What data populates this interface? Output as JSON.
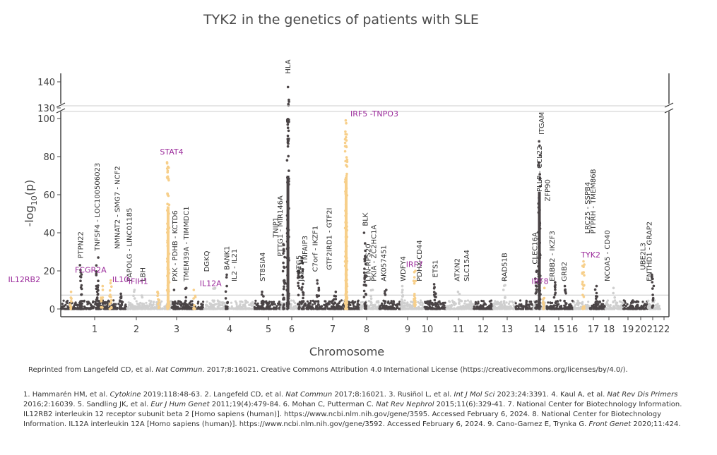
{
  "chart_data": {
    "type": "scatter",
    "title": "TYK2 in the genetics of patients with SLE",
    "xlabel": "Chromosome",
    "ylabel_parts": [
      "-log",
      "10",
      "(p)"
    ],
    "y_ticks_lower": [
      0,
      20,
      40,
      60,
      80,
      100
    ],
    "y_ticks_upper": [
      130,
      140
    ],
    "y_break": [
      100,
      130
    ],
    "chromosomes": [
      "1",
      "2",
      "3",
      "4",
      "5",
      "6",
      "7",
      "8",
      "9",
      "10",
      "11",
      "12",
      "13",
      "14",
      "15",
      "16",
      "17",
      "18",
      "19",
      "20",
      "21",
      "22"
    ],
    "colors": {
      "dark": "#4a4446",
      "light": "#cfcfcf",
      "highlight": "#f7cf8a",
      "label": "#9b2a9b",
      "threshold": "#cccccc"
    },
    "significance_threshold": 7.3,
    "peaks": [
      {
        "chr": "1",
        "pos": 0.15,
        "max": 9,
        "hl": true
      },
      {
        "chr": "1",
        "pos": 0.3,
        "max": 23,
        "hl": false
      },
      {
        "chr": "1",
        "pos": 0.55,
        "max": 27,
        "hl": false
      },
      {
        "chr": "1",
        "pos": 0.62,
        "max": 12,
        "hl": true
      },
      {
        "chr": "1",
        "pos": 0.75,
        "max": 15,
        "hl": true
      },
      {
        "chr": "1",
        "pos": 0.9,
        "max": 8,
        "hl": false
      },
      {
        "chr": "2",
        "pos": 0.15,
        "max": 10,
        "hl": false
      },
      {
        "chr": "2",
        "pos": 0.35,
        "max": 7,
        "hl": false
      },
      {
        "chr": "2",
        "pos": 0.7,
        "max": 9,
        "hl": true
      },
      {
        "chr": "2",
        "pos": 0.92,
        "max": 77,
        "hl": true
      },
      {
        "chr": "3",
        "pos": 0.1,
        "max": 10,
        "hl": false
      },
      {
        "chr": "3",
        "pos": 0.45,
        "max": 11,
        "hl": false
      },
      {
        "chr": "3",
        "pos": 0.7,
        "max": 10,
        "hl": true
      },
      {
        "chr": "4",
        "pos": 0.2,
        "max": 11,
        "hl": false
      },
      {
        "chr": "4",
        "pos": 0.45,
        "max": 18,
        "hl": false
      },
      {
        "chr": "5",
        "pos": 0.3,
        "max": 9,
        "hl": false
      },
      {
        "chr": "6",
        "pos": 0.12,
        "max": 34,
        "hl": false
      },
      {
        "chr": "6",
        "pos": 0.3,
        "max": 138,
        "hl": false
      },
      {
        "chr": "6",
        "pos": 0.78,
        "max": 20,
        "hl": false
      },
      {
        "chr": "6",
        "pos": 0.95,
        "max": 27,
        "hl": false
      },
      {
        "chr": "7",
        "pos": 0.25,
        "max": 15,
        "hl": false
      },
      {
        "chr": "7",
        "pos": 0.55,
        "max": 9,
        "hl": false
      },
      {
        "chr": "7",
        "pos": 0.75,
        "max": 99,
        "hl": true
      },
      {
        "chr": "8",
        "pos": 0.25,
        "max": 40,
        "hl": false
      },
      {
        "chr": "8",
        "pos": 0.6,
        "max": 10,
        "hl": false
      },
      {
        "chr": "9",
        "pos": 0.3,
        "max": 10,
        "hl": false
      },
      {
        "chr": "10",
        "pos": 0.1,
        "max": 12,
        "hl": false
      },
      {
        "chr": "10",
        "pos": 0.6,
        "max": 20,
        "hl": true
      },
      {
        "chr": "11",
        "pos": 0.5,
        "max": 13,
        "hl": false
      },
      {
        "chr": "12",
        "pos": 0.45,
        "max": 9,
        "hl": false
      },
      {
        "chr": "14",
        "pos": 0.5,
        "max": 15,
        "hl": false
      },
      {
        "chr": "16",
        "pos": 0.2,
        "max": 20,
        "hl": false
      },
      {
        "chr": "16",
        "pos": 0.45,
        "max": 88,
        "hl": false
      },
      {
        "chr": "16",
        "pos": 0.8,
        "max": 11,
        "hl": true
      },
      {
        "chr": "17",
        "pos": 0.3,
        "max": 14,
        "hl": false
      },
      {
        "chr": "17",
        "pos": 0.7,
        "max": 12,
        "hl": false
      },
      {
        "chr": "18",
        "pos": 0.6,
        "max": 25,
        "hl": true
      },
      {
        "chr": "19",
        "pos": 0.4,
        "max": 12,
        "hl": false
      },
      {
        "chr": "20",
        "pos": 0.5,
        "max": 11,
        "hl": false
      },
      {
        "chr": "22",
        "pos": 0.4,
        "max": 18,
        "hl": false
      }
    ],
    "gene_labels": [
      {
        "text": "PTPN22",
        "chr": "1",
        "pos": 0.3,
        "y": 25,
        "hl": false
      },
      {
        "text": "TNFSF4 - LOC100506023",
        "chr": "1",
        "pos": 0.55,
        "y": 29,
        "hl": false
      },
      {
        "text": "NMNAT2 - SMG7 - NCF2",
        "chr": "1",
        "pos": 0.85,
        "y": 30,
        "hl": false
      },
      {
        "text": "PAPOLG - LINC01185",
        "chr": "2",
        "pos": 0.05,
        "y": 13,
        "hl": false
      },
      {
        "text": "LBH",
        "chr": "2",
        "pos": 0.35,
        "y": 13,
        "hl": false
      },
      {
        "text": "PXK - PDHB - KCTD6",
        "chr": "3",
        "pos": 0.1,
        "y": 13,
        "hl": false
      },
      {
        "text": "TMEM39A - TIMMDC1",
        "chr": "3",
        "pos": 0.45,
        "y": 13,
        "hl": false
      },
      {
        "text": "DGKQ",
        "chr": "4",
        "pos": 0.05,
        "y": 18,
        "hl": false
      },
      {
        "text": "BANK1",
        "chr": "4",
        "pos": 0.45,
        "y": 19,
        "hl": false
      },
      {
        "text": "IL2 - IL21",
        "chr": "4",
        "pos": 0.6,
        "y": 13,
        "hl": false
      },
      {
        "text": "ST8SIA4",
        "chr": "5",
        "pos": 0.3,
        "y": 13,
        "hl": false
      },
      {
        "text": "TNIP1",
        "chr": "6",
        "pos": -0.25,
        "y": 36,
        "hl": false
      },
      {
        "text": "PTTG1 - MIR146A",
        "chr": "6",
        "pos": -0.05,
        "y": 26,
        "hl": false
      },
      {
        "text": "HLA",
        "chr": "6",
        "pos": 0.3,
        "y": 142,
        "hl": false
      },
      {
        "text": "ATG5",
        "chr": "6",
        "pos": 0.78,
        "y": 17,
        "hl": false
      },
      {
        "text": "TNFAIP3",
        "chr": "6",
        "pos": 1.05,
        "y": 22,
        "hl": false
      },
      {
        "text": "JAZF1",
        "chr": "7",
        "pos": -0.05,
        "y": 13,
        "hl": false
      },
      {
        "text": "C7orf - IKZF1",
        "chr": "7",
        "pos": 0.2,
        "y": 18,
        "hl": false
      },
      {
        "text": "GTF2IRD1 - GTF2I",
        "chr": "7",
        "pos": 0.45,
        "y": 19,
        "hl": false
      },
      {
        "text": "BLK",
        "chr": "8",
        "pos": 0.25,
        "y": 42,
        "hl": false
      },
      {
        "text": "LYN-RPS20",
        "chr": "8",
        "pos": 0.4,
        "y": 13,
        "hl": false
      },
      {
        "text": "PKIA - ZC2HC1A",
        "chr": "8",
        "pos": 0.7,
        "y": 13,
        "hl": false
      },
      {
        "text": "AK057451",
        "chr": "9",
        "pos": 0.2,
        "y": 13,
        "hl": false
      },
      {
        "text": "WDFY4",
        "chr": "10",
        "pos": 0.1,
        "y": 13,
        "hl": false
      },
      {
        "text": "PDHX-CD44",
        "chr": "11",
        "pos": -0.2,
        "y": 13,
        "hl": false
      },
      {
        "text": "ETS1",
        "chr": "11",
        "pos": 0.5,
        "y": 15,
        "hl": false
      },
      {
        "text": "ATXN2",
        "chr": "12",
        "pos": 0.4,
        "y": 13,
        "hl": false
      },
      {
        "text": "SLC15A4",
        "chr": "12",
        "pos": 0.75,
        "y": 13,
        "hl": false
      },
      {
        "text": "RAD51B",
        "chr": "14",
        "pos": 0.5,
        "y": 13,
        "hl": false
      },
      {
        "text": "CLEC16A",
        "chr": "16",
        "pos": 0.1,
        "y": 22,
        "hl": false
      },
      {
        "text": "PLLP - CCL22",
        "chr": "16",
        "pos": 0.45,
        "y": 60,
        "hl": false
      },
      {
        "text": "ITGAM",
        "chr": "16",
        "pos": 0.6,
        "y": 90,
        "hl": false
      },
      {
        "text": "ZFP90",
        "chr": "16",
        "pos": 1.05,
        "y": 55,
        "hl": false
      },
      {
        "text": "ERBB2 - IKZF3",
        "chr": "17",
        "pos": 0.2,
        "y": 13,
        "hl": false
      },
      {
        "text": "GRB2",
        "chr": "17",
        "pos": 0.65,
        "y": 13,
        "hl": false
      },
      {
        "text": "LRC25 - SSPB4",
        "chr": "18",
        "pos": 0.85,
        "y": 38,
        "hl": false
      },
      {
        "text": "PTPRH - TMEM86B",
        "chr": "19",
        "pos": 0.2,
        "y": 38,
        "hl": false
      },
      {
        "text": "NCOA5 - CD40",
        "chr": "20",
        "pos": 0.1,
        "y": 13,
        "hl": false
      },
      {
        "text": "UBE2L3",
        "chr": "22",
        "pos": -0.4,
        "y": 19,
        "hl": false
      },
      {
        "text": "ENTHD1 - GRAP2",
        "chr": "22",
        "pos": 0.1,
        "y": 13,
        "hl": false
      },
      {
        "text": "FCGR2A",
        "chr": "1",
        "pos": 0.45,
        "y": 18,
        "hl": true,
        "horizontal": true
      },
      {
        "text": "IL12RB2",
        "chr": "1",
        "pos": -0.55,
        "y": 13,
        "hl": true,
        "horizontal": true
      },
      {
        "text": "IL10",
        "chr": "1",
        "pos": 0.9,
        "y": 13,
        "hl": true,
        "horizontal": true
      },
      {
        "text": "STAT4",
        "chr": "2",
        "pos": 1.0,
        "y": 80,
        "hl": true,
        "horizontal": true
      },
      {
        "text": "IFIH1",
        "chr": "2",
        "pos": 0.25,
        "y": 12,
        "hl": true,
        "horizontal": true
      },
      {
        "text": "IL12A",
        "chr": "3",
        "pos": 1.2,
        "y": 11,
        "hl": true,
        "horizontal": true
      },
      {
        "text": "IRF5 -TNPO3",
        "chr": "7",
        "pos": 1.25,
        "y": 100,
        "hl": true,
        "horizontal": true
      },
      {
        "text": "IRF7",
        "chr": "10",
        "pos": 0.6,
        "y": 21,
        "hl": true,
        "horizontal": true
      },
      {
        "text": "IRF8",
        "chr": "17",
        "pos": -0.25,
        "y": 12,
        "hl": true,
        "horizontal": true
      },
      {
        "text": "TYK2",
        "chr": "18",
        "pos": 1.05,
        "y": 26,
        "hl": true,
        "horizontal": true
      }
    ]
  },
  "footer": {
    "reprint": [
      {
        "t": "Reprinted from Langefeld CD, et al. "
      },
      {
        "t": "Nat Commun",
        "i": true
      },
      {
        "t": ". 2017;8:16021. Creative Commons Attribution 4.0 International License (https://creativecommons.org/licenses/by/4.0/)."
      }
    ],
    "references": [
      {
        "t": "1. Hammarén HM, et al. "
      },
      {
        "t": "Cytokine",
        "i": true
      },
      {
        "t": " 2019;118:48-63. 2. Langefeld CD, et al. "
      },
      {
        "t": "Nat Commun",
        "i": true
      },
      {
        "t": " 2017;8:16021. 3. Rusiñol L, et al. "
      },
      {
        "t": "Int J Mol Sci",
        "i": true
      },
      {
        "t": " 2023;24:3391. 4. Kaul A, et al. "
      },
      {
        "t": "Nat Rev Dis Primers",
        "i": true
      },
      {
        "t": " 2016;2:16039. 5. Sandling JK, et al. "
      },
      {
        "t": "Eur J Hum Genet",
        "i": true
      },
      {
        "t": " 2011;19(4):479-84.  6. Mohan C, Putterman C. "
      },
      {
        "t": "Nat Rev Nephrol",
        "i": true
      },
      {
        "t": " 2015;11(6):329-41. 7. National Center for Biotechnology Information. IL12RB2 interleukin 12 receptor subunit beta 2 [Homo sapiens (human)]. https://www.ncbi.nlm.nih.gov/gene/3595. Accessed February 6, 2024. 8. National Center for Biotechnology Information. IL12A interleukin 12A [Homo sapiens (human)]. https://www.ncbi.nlm.nih.gov/gene/3592. Accessed February 6, 2024. 9. Cano-Gamez E, Trynka G. "
      },
      {
        "t": "Front Genet",
        "i": true
      },
      {
        "t": " 2020;11:424."
      }
    ]
  }
}
